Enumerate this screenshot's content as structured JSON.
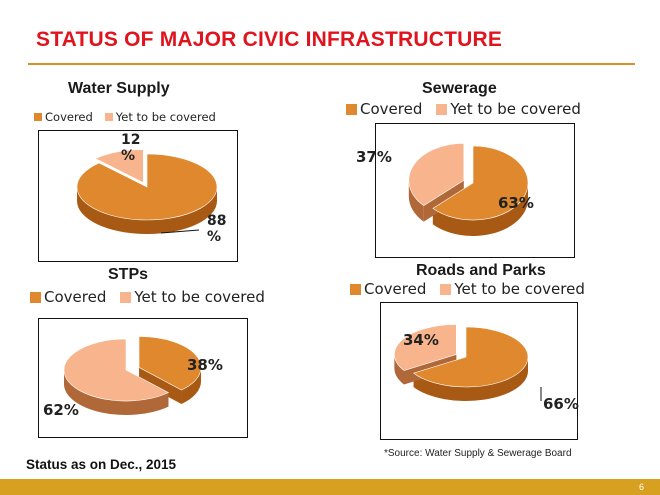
{
  "slide": {
    "title": "STATUS OF MAJOR CIVIC INFRASTRUCTURE",
    "status_note": "Status as on Dec., 2015",
    "source_note": "*Source: Water Supply & Sewerage Board",
    "page_number": "6"
  },
  "colors": {
    "covered": "#e0882e",
    "covered_side": "#a85a14",
    "uncovered": "#f8b48c",
    "uncovered_side": "#b06838",
    "title_red": "#e0141e",
    "rule": "#d9902a",
    "footer": "#d8a020"
  },
  "chart_data": [
    {
      "type": "pie",
      "title": "Water Supply",
      "legend": [
        "Covered",
        "Yet to be covered"
      ],
      "slices": [
        {
          "label": "Covered",
          "value": 88,
          "display": "88\n%"
        },
        {
          "label": "Yet to be covered",
          "value": 12,
          "display": "12\n%"
        }
      ]
    },
    {
      "type": "pie",
      "title": "Sewerage",
      "legend": [
        "Covered",
        "Yet to be covered"
      ],
      "slices": [
        {
          "label": "Covered",
          "value": 63,
          "display": "63%"
        },
        {
          "label": "Yet to be covered",
          "value": 37,
          "display": "37%"
        }
      ]
    },
    {
      "type": "pie",
      "title": "STPs",
      "legend": [
        "Covered",
        "Yet to be covered"
      ],
      "slices": [
        {
          "label": "Covered",
          "value": 38,
          "display": "38%"
        },
        {
          "label": "Yet to be covered",
          "value": 62,
          "display": "62%"
        }
      ]
    },
    {
      "type": "pie",
      "title": "Roads and Parks",
      "legend": [
        "Covered",
        "Yet to be covered"
      ],
      "slices": [
        {
          "label": "Covered",
          "value": 66,
          "display": "66%"
        },
        {
          "label": "Yet to be covered",
          "value": 34,
          "display": "34%"
        }
      ]
    }
  ]
}
